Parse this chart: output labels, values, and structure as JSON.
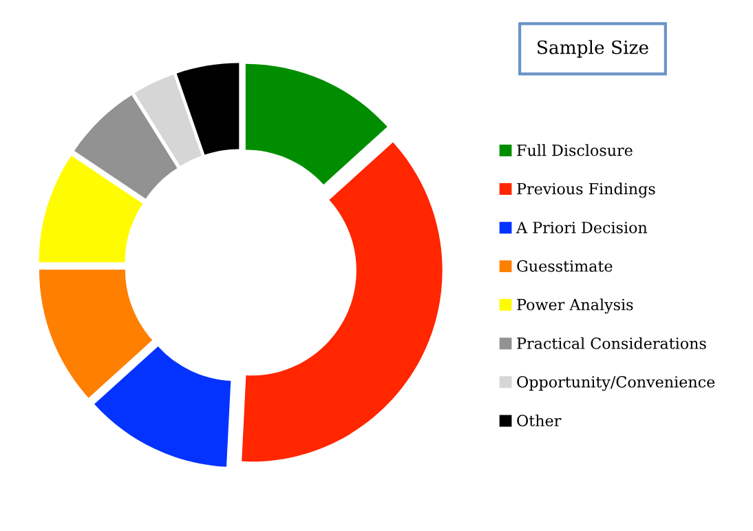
{
  "chart_data": {
    "type": "donut",
    "title": "Sample Size",
    "categories": [
      "Full Disclosure",
      "Previous Findings",
      "A Priori Decision",
      "Guesstimate",
      "Power Analysis",
      "Practical Considerations",
      "Opportunity/Convenience",
      "Other"
    ],
    "values": [
      13.3,
      37.5,
      12.5,
      11.7,
      9.4,
      6.7,
      3.6,
      5.3
    ],
    "colors": [
      "#008e00",
      "#ff2600",
      "#0433ff",
      "#ff7f00",
      "#fffb00",
      "#929292",
      "#d6d6d6",
      "#000000"
    ],
    "legend": "right"
  }
}
